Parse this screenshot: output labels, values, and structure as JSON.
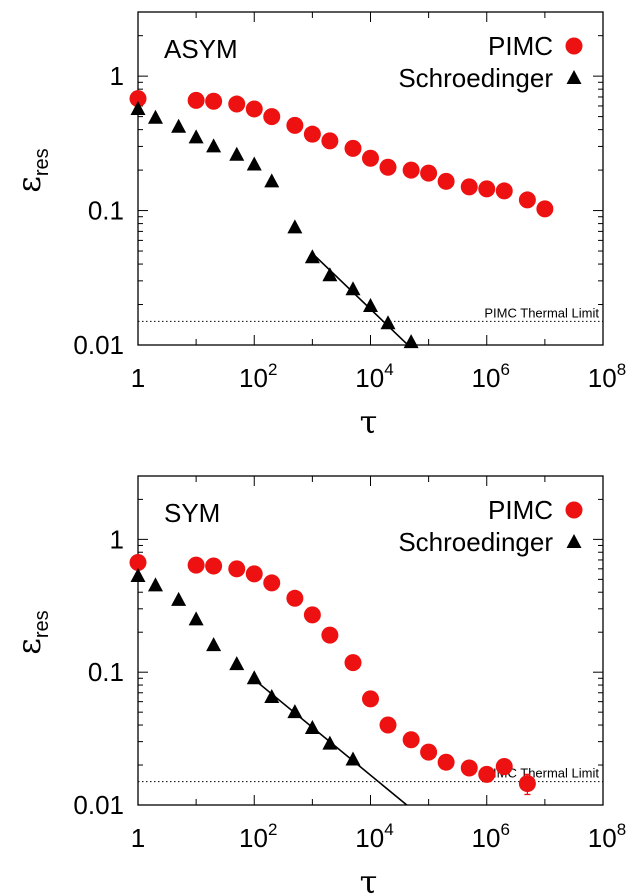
{
  "chart_data": [
    {
      "type": "scatter",
      "panel_label": "ASYM",
      "xlabel": "τ",
      "ylabel": "ε",
      "ylabel_sub": "res",
      "x_scale": "log",
      "y_scale": "log",
      "xlim": [
        1,
        100000000
      ],
      "ylim": [
        0.01,
        3
      ],
      "x_ticks": [
        {
          "base": "1",
          "exp": ""
        },
        {
          "base": "10",
          "exp": "2"
        },
        {
          "base": "10",
          "exp": "4"
        },
        {
          "base": "10",
          "exp": "6"
        },
        {
          "base": "10",
          "exp": "8"
        }
      ],
      "y_ticks": [
        {
          "value": 1,
          "label": "1"
        },
        {
          "value": 0.1,
          "label": "0.1"
        },
        {
          "value": 0.01,
          "label": "0.01"
        }
      ],
      "legend_position": "top-right",
      "series": [
        {
          "name": "PIMC",
          "marker": "circle",
          "color": "#ee1111",
          "points": [
            [
              1,
              0.68
            ],
            [
              10,
              0.66
            ],
            [
              20,
              0.65
            ],
            [
              50,
              0.62
            ],
            [
              100,
              0.57
            ],
            [
              200,
              0.5
            ],
            [
              500,
              0.43
            ],
            [
              1000,
              0.37
            ],
            [
              2000,
              0.33
            ],
            [
              5000,
              0.29
            ],
            [
              10000,
              0.245
            ],
            [
              20000,
              0.21
            ],
            [
              50000,
              0.2
            ],
            [
              100000,
              0.19
            ],
            [
              200000,
              0.165
            ],
            [
              500000,
              0.15
            ],
            [
              1000000,
              0.145
            ],
            [
              2000000,
              0.14
            ],
            [
              5000000,
              0.12
            ],
            [
              10000000,
              0.103
            ]
          ]
        },
        {
          "name": "Schroedinger",
          "marker": "triangle",
          "color": "#000000",
          "points": [
            [
              1,
              0.57
            ],
            [
              2,
              0.49
            ],
            [
              5,
              0.42
            ],
            [
              10,
              0.35
            ],
            [
              20,
              0.3
            ],
            [
              50,
              0.26
            ],
            [
              100,
              0.22
            ],
            [
              200,
              0.165
            ],
            [
              500,
              0.075
            ],
            [
              1000,
              0.045
            ],
            [
              2000,
              0.033
            ],
            [
              5000,
              0.026
            ],
            [
              10000,
              0.0195
            ],
            [
              20000,
              0.0145
            ],
            [
              50000,
              0.0105
            ]
          ]
        }
      ],
      "fit_line": [
        [
          1000,
          0.048
        ],
        [
          60000,
          0.0088
        ]
      ],
      "reference_line": {
        "y": 0.015,
        "label": "PIMC Thermal Limit"
      }
    },
    {
      "type": "scatter",
      "panel_label": "SYM",
      "xlabel": "τ",
      "ylabel": "ε",
      "ylabel_sub": "res",
      "x_scale": "log",
      "y_scale": "log",
      "xlim": [
        1,
        100000000
      ],
      "ylim": [
        0.01,
        3
      ],
      "x_ticks": [
        {
          "base": "1",
          "exp": ""
        },
        {
          "base": "10",
          "exp": "2"
        },
        {
          "base": "10",
          "exp": "4"
        },
        {
          "base": "10",
          "exp": "6"
        },
        {
          "base": "10",
          "exp": "8"
        }
      ],
      "y_ticks": [
        {
          "value": 1,
          "label": "1"
        },
        {
          "value": 0.1,
          "label": "0.1"
        },
        {
          "value": 0.01,
          "label": "0.01"
        }
      ],
      "legend_position": "top-right",
      "series": [
        {
          "name": "PIMC",
          "marker": "circle",
          "color": "#ee1111",
          "points": [
            [
              1,
              0.67
            ],
            [
              10,
              0.64
            ],
            [
              20,
              0.63
            ],
            [
              50,
              0.6
            ],
            [
              100,
              0.55
            ],
            [
              200,
              0.47
            ],
            [
              500,
              0.36
            ],
            [
              1000,
              0.27
            ],
            [
              2000,
              0.19
            ],
            [
              5000,
              0.118
            ],
            [
              10000,
              0.063
            ],
            [
              20000,
              0.04
            ],
            [
              50000,
              0.031
            ],
            [
              100000,
              0.025
            ],
            [
              200000,
              0.021
            ],
            [
              500000,
              0.019
            ],
            [
              1000000,
              0.017
            ],
            [
              2000000,
              0.0195
            ],
            [
              5000000,
              0.0145
            ]
          ],
          "errors": [
            0,
            0,
            0,
            0,
            0,
            0,
            0,
            0,
            0,
            0,
            0,
            0,
            0,
            0,
            0,
            0,
            0,
            0.0025,
            0.0025
          ]
        },
        {
          "name": "Schroedinger",
          "marker": "triangle",
          "color": "#000000",
          "points": [
            [
              1,
              0.53
            ],
            [
              2,
              0.45
            ],
            [
              5,
              0.35
            ],
            [
              10,
              0.25
            ],
            [
              20,
              0.16
            ],
            [
              50,
              0.115
            ],
            [
              100,
              0.09
            ],
            [
              200,
              0.065
            ],
            [
              500,
              0.05
            ],
            [
              1000,
              0.038
            ],
            [
              2000,
              0.029
            ],
            [
              5000,
              0.022
            ]
          ]
        }
      ],
      "fit_line": [
        [
          100,
          0.088
        ],
        [
          60000,
          0.0088
        ]
      ],
      "reference_line": {
        "y": 0.015,
        "label": "PIMC Thermal Limit"
      }
    }
  ]
}
